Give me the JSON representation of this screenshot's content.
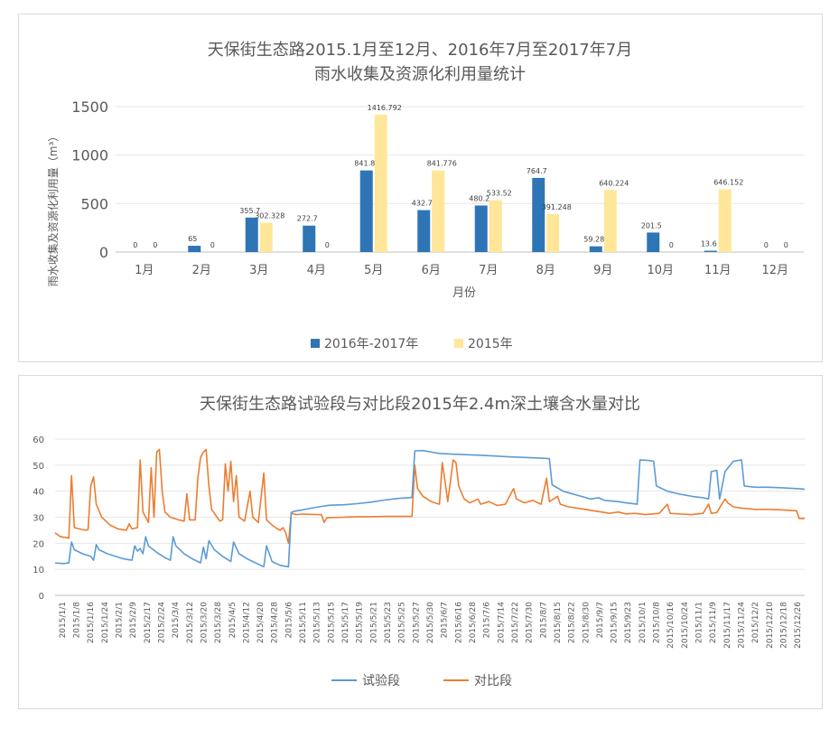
{
  "chart_data": [
    {
      "type": "bar",
      "title": "天保街生态路2015.1月至12月、2016年7月至2017年7月",
      "subtitle": "雨水收集及资源化利用量统计",
      "xlabel": "月份",
      "ylabel": "雨水收集及资源化利用量（m³）",
      "ylim": [
        0,
        1500
      ],
      "yticks": [
        "0",
        "500",
        "1000",
        "1500"
      ],
      "grid": true,
      "legend_position": "bottom",
      "categories": [
        "1月",
        "2月",
        "3月",
        "4月",
        "5月",
        "6月",
        "7月",
        "8月",
        "9月",
        "10月",
        "11月",
        "12月"
      ],
      "series": [
        {
          "name": "2016年-2017年",
          "color": "#2e75b6",
          "values": [
            0,
            65,
            355.7,
            272.7,
            841.8,
            432.7,
            480.2,
            764.7,
            59.28,
            201.5,
            13.6,
            0
          ],
          "labels": [
            "0",
            "65",
            "355.7",
            "272.7",
            "841.8",
            "432.7",
            "480.2",
            "764.7",
            "59.28",
            "201.5",
            "13.6",
            "0"
          ]
        },
        {
          "name": "2015年",
          "color": "#ffe699",
          "values": [
            0,
            0,
            302.328,
            0,
            1416.792,
            841.776,
            533.52,
            391.248,
            640.224,
            0,
            646.152,
            0
          ],
          "labels": [
            "0",
            "0",
            "302.328",
            "0",
            "1416.792",
            "841.776",
            "533.52",
            "391.248",
            "640.224",
            "0",
            "646.152",
            "0"
          ]
        }
      ]
    },
    {
      "type": "line",
      "title": "天保街生态路试验段与对比段2015年2.4m深土壤含水量对比",
      "ylim": [
        0,
        60
      ],
      "yticks": [
        "0",
        "10",
        "20",
        "30",
        "40",
        "50",
        "60"
      ],
      "grid": true,
      "legend_position": "bottom",
      "x_range": [
        "2015/1/1",
        "2015/12/31"
      ],
      "x_tick_labels": [
        "2015/1/1",
        "2015/1/8",
        "2015/1/16",
        "2015/1/24",
        "2015/2/1",
        "2015/2/9",
        "2015/2/17",
        "2015/2/24",
        "2015/3/4",
        "2015/3/12",
        "2015/3/20",
        "2015/3/28",
        "2015/4/5",
        "2015/4/12",
        "2015/4/20",
        "2015/4/28",
        "2015/5/6",
        "2015/5/11",
        "2015/5/13",
        "2015/5/15",
        "2015/5/17",
        "2015/5/19",
        "2015/5/21",
        "2015/5/23",
        "2015/5/25",
        "2015/5/27",
        "2015/5/30",
        "2015/6/7",
        "2015/6/16",
        "2015/6/28",
        "2015/7/6",
        "2015/7/14",
        "2015/7/22",
        "2015/7/30",
        "2015/8/7",
        "2015/8/15",
        "2015/8/22",
        "2015/8/30",
        "2015/9/7",
        "2015/9/15",
        "2015/9/23",
        "2015/10/1",
        "2015/10/8",
        "2015/10/16",
        "2015/10/24",
        "2015/11/1",
        "2015/11/9",
        "2015/11/17",
        "2015/11/24",
        "2015/12/2",
        "2015/12/10",
        "2015/12/18",
        "2015/12/26"
      ],
      "series": [
        {
          "name": "试验段",
          "color": "#5b9bd5",
          "points": [
            [
              0,
              12.5
            ],
            [
              3,
              12.2
            ],
            [
              5,
              12.5
            ],
            [
              6,
              20.5
            ],
            [
              7,
              17.5
            ],
            [
              10,
              16
            ],
            [
              13,
              15
            ],
            [
              14,
              13.5
            ],
            [
              15,
              19.5
            ],
            [
              16,
              17.5
            ],
            [
              19,
              16
            ],
            [
              22,
              15
            ],
            [
              25,
              14
            ],
            [
              28,
              13.5
            ],
            [
              29,
              19
            ],
            [
              30,
              17
            ],
            [
              31,
              18
            ],
            [
              32,
              16
            ],
            [
              33,
              22.5
            ],
            [
              34,
              19
            ],
            [
              37,
              16.5
            ],
            [
              40,
              14.5
            ],
            [
              42,
              13.5
            ],
            [
              43,
              22.5
            ],
            [
              44,
              19
            ],
            [
              47,
              16
            ],
            [
              50,
              14
            ],
            [
              53,
              12.5
            ],
            [
              54,
              18.5
            ],
            [
              55,
              14
            ],
            [
              56,
              21
            ],
            [
              58,
              17.5
            ],
            [
              61,
              15
            ],
            [
              64,
              13
            ],
            [
              65,
              20.5
            ],
            [
              67,
              16
            ],
            [
              70,
              14
            ],
            [
              73,
              12.5
            ],
            [
              76,
              11
            ],
            [
              77,
              19
            ],
            [
              79,
              13
            ],
            [
              82,
              11.5
            ],
            [
              85,
              11
            ],
            [
              86,
              31.8
            ],
            [
              87,
              32.3
            ],
            [
              90,
              32.8
            ],
            [
              95,
              33.8
            ],
            [
              100,
              34.6
            ],
            [
              105,
              34.8
            ],
            [
              110,
              35.2
            ],
            [
              115,
              35.8
            ],
            [
              120,
              36.6
            ],
            [
              125,
              37.2
            ],
            [
              130,
              37.6
            ],
            [
              131,
              55.5
            ],
            [
              134,
              55.6
            ],
            [
              137,
              55
            ],
            [
              140,
              54.5
            ],
            [
              145,
              54.2
            ],
            [
              150,
              54
            ],
            [
              155,
              53.8
            ],
            [
              160,
              53.5
            ],
            [
              165,
              53.2
            ],
            [
              170,
              53
            ],
            [
              175,
              52.8
            ],
            [
              180,
              52.5
            ],
            [
              181,
              42.5
            ],
            [
              185,
              40
            ],
            [
              190,
              38.5
            ],
            [
              195,
              37
            ],
            [
              198,
              37.5
            ],
            [
              200,
              36.5
            ],
            [
              205,
              36
            ],
            [
              208,
              35.5
            ],
            [
              212,
              35
            ],
            [
              213,
              52
            ],
            [
              216,
              51.8
            ],
            [
              218,
              51.5
            ],
            [
              219,
              42
            ],
            [
              223,
              40
            ],
            [
              227,
              39
            ],
            [
              232,
              38
            ],
            [
              236,
              37.5
            ],
            [
              238,
              37
            ],
            [
              239,
              47.5
            ],
            [
              241,
              48
            ],
            [
              242,
              37
            ],
            [
              244,
              47.5
            ],
            [
              247,
              51.5
            ],
            [
              250,
              52
            ],
            [
              251,
              42
            ],
            [
              255,
              41.5
            ],
            [
              260,
              41.5
            ],
            [
              265,
              41.3
            ],
            [
              270,
              41
            ],
            [
              273,
              40.8
            ]
          ]
        },
        {
          "name": "对比段",
          "color": "#ed7d31",
          "points": [
            [
              0,
              24
            ],
            [
              2,
              22.5
            ],
            [
              5,
              22
            ],
            [
              6,
              46
            ],
            [
              7,
              26
            ],
            [
              9,
              25.5
            ],
            [
              11,
              25
            ],
            [
              12,
              25.2
            ],
            [
              13,
              42
            ],
            [
              14,
              45.5
            ],
            [
              15,
              35
            ],
            [
              17,
              30
            ],
            [
              20,
              27
            ],
            [
              23,
              25.5
            ],
            [
              26,
              25
            ],
            [
              27,
              27.5
            ],
            [
              28,
              25.5
            ],
            [
              30,
              26
            ],
            [
              31,
              52
            ],
            [
              32,
              32
            ],
            [
              34,
              28
            ],
            [
              35,
              49
            ],
            [
              36,
              30
            ],
            [
              37,
              55
            ],
            [
              38,
              56
            ],
            [
              39,
              40
            ],
            [
              40,
              32
            ],
            [
              42,
              30
            ],
            [
              45,
              29
            ],
            [
              47,
              28.5
            ],
            [
              48,
              39
            ],
            [
              49,
              29
            ],
            [
              51,
              29
            ],
            [
              52,
              45
            ],
            [
              53,
              53
            ],
            [
              54,
              55
            ],
            [
              55,
              56
            ],
            [
              56,
              42
            ],
            [
              57,
              33
            ],
            [
              59,
              30
            ],
            [
              60,
              28.5
            ],
            [
              61,
              29
            ],
            [
              62,
              50.5
            ],
            [
              63,
              40
            ],
            [
              64,
              51.5
            ],
            [
              65,
              36
            ],
            [
              66,
              46
            ],
            [
              67,
              30
            ],
            [
              69,
              28.5
            ],
            [
              71,
              40
            ],
            [
              72,
              30
            ],
            [
              74,
              28
            ],
            [
              76,
              47
            ],
            [
              77,
              29
            ],
            [
              79,
              27
            ],
            [
              81,
              25.5
            ],
            [
              82,
              25
            ],
            [
              83,
              26
            ],
            [
              84,
              24
            ],
            [
              85,
              20
            ],
            [
              86,
              31.5
            ],
            [
              88,
              31
            ],
            [
              90,
              31.2
            ],
            [
              95,
              31
            ],
            [
              97,
              31
            ],
            [
              98,
              28
            ],
            [
              99,
              29.8
            ],
            [
              105,
              30
            ],
            [
              110,
              30.2
            ],
            [
              115,
              30.2
            ],
            [
              120,
              30.3
            ],
            [
              125,
              30.3
            ],
            [
              130,
              30.3
            ],
            [
              131,
              50
            ],
            [
              132,
              41
            ],
            [
              134,
              38
            ],
            [
              137,
              36
            ],
            [
              140,
              35
            ],
            [
              141,
              51
            ],
            [
              142,
              44
            ],
            [
              143,
              36
            ],
            [
              145,
              52
            ],
            [
              146,
              51
            ],
            [
              147,
              42
            ],
            [
              149,
              37
            ],
            [
              151,
              35.5
            ],
            [
              154,
              37
            ],
            [
              155,
              35
            ],
            [
              158,
              36
            ],
            [
              161,
              34.5
            ],
            [
              164,
              35
            ],
            [
              167,
              41
            ],
            [
              168,
              37
            ],
            [
              171,
              35.5
            ],
            [
              174,
              36.5
            ],
            [
              177,
              35
            ],
            [
              179,
              45
            ],
            [
              180,
              36
            ],
            [
              183,
              38
            ],
            [
              184,
              35
            ],
            [
              187,
              34
            ],
            [
              190,
              33.5
            ],
            [
              193,
              33
            ],
            [
              196,
              32.5
            ],
            [
              199,
              32
            ],
            [
              202,
              31.5
            ],
            [
              205,
              32
            ],
            [
              208,
              31.3
            ],
            [
              211,
              31.5
            ],
            [
              215,
              31
            ],
            [
              220,
              31.5
            ],
            [
              223,
              35
            ],
            [
              224,
              31.5
            ],
            [
              228,
              31.2
            ],
            [
              232,
              31
            ],
            [
              236,
              31.5
            ],
            [
              238,
              35
            ],
            [
              239,
              31.5
            ],
            [
              241,
              31.8
            ],
            [
              244,
              37
            ],
            [
              245,
              35.5
            ],
            [
              247,
              34
            ],
            [
              250,
              33.5
            ],
            [
              255,
              33
            ],
            [
              260,
              33
            ],
            [
              265,
              32.8
            ],
            [
              270,
              32.5
            ],
            [
              271,
              29.5
            ],
            [
              273,
              29.5
            ]
          ]
        }
      ]
    }
  ]
}
